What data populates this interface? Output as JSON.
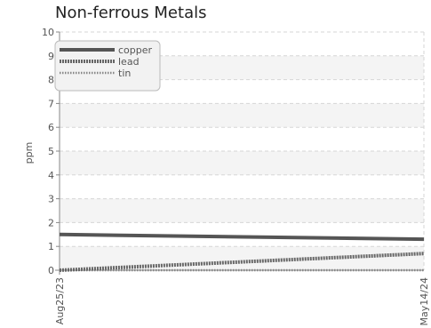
{
  "chart_data": {
    "type": "line",
    "title": "Non-ferrous Metals",
    "xlabel": "",
    "ylabel": "ppm",
    "ylim": [
      0,
      10
    ],
    "y_ticks": [
      "0",
      "1",
      "2",
      "3",
      "4",
      "5",
      "6",
      "7",
      "8",
      "9",
      "10"
    ],
    "x_tick_labels": [
      "Aug25/23",
      "May14/24"
    ],
    "x": [
      "Aug25/23",
      "May14/24"
    ],
    "series": [
      {
        "name": "copper",
        "values": [
          1.5,
          1.3
        ],
        "color": "#555555",
        "style": "solid"
      },
      {
        "name": "lead",
        "values": [
          0.0,
          0.7
        ],
        "color": "#666666",
        "style": "dotted"
      },
      {
        "name": "tin",
        "values": [
          0.0,
          0.0
        ],
        "color": "#888888",
        "style": "fine-dotted"
      }
    ],
    "grid": true,
    "legend_position": "top-left"
  }
}
